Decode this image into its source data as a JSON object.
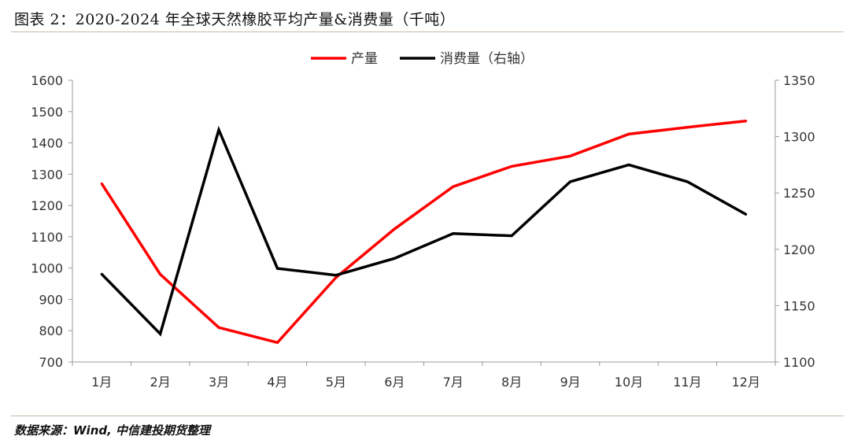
{
  "figure": {
    "title": "图表 2：2020-2024 年全球天然橡胶平均产量&消费量（千吨）",
    "source": "数据来源：Wind, 中信建投期货整理"
  },
  "chart_data": {
    "type": "line",
    "title": "",
    "xlabel": "",
    "ylabel": "",
    "categories": [
      "1月",
      "2月",
      "3月",
      "4月",
      "5月",
      "6月",
      "7月",
      "8月",
      "9月",
      "10月",
      "11月",
      "12月"
    ],
    "y_left": {
      "min": 700,
      "max": 1600,
      "step": 100,
      "ticks": [
        "700",
        "800",
        "900",
        "1000",
        "1100",
        "1200",
        "1300",
        "1400",
        "1500",
        "1600"
      ]
    },
    "y_right": {
      "min": 1100,
      "max": 1350,
      "step": 50,
      "ticks": [
        "1100",
        "1150",
        "1200",
        "1250",
        "1300",
        "1350"
      ]
    },
    "grid": false,
    "legend_position": "top-center",
    "series": [
      {
        "name": "产量",
        "axis": "left",
        "color": "#ff0000",
        "values": [
          1270,
          980,
          810,
          762,
          970,
          1125,
          1260,
          1325,
          1358,
          1428,
          1450,
          1470
        ]
      },
      {
        "name": "消费量（右轴）",
        "axis": "right",
        "color": "#000000",
        "values": [
          1178,
          1125,
          1306,
          1183,
          1177,
          1192,
          1214,
          1212,
          1260,
          1275,
          1260,
          1231
        ]
      }
    ]
  }
}
